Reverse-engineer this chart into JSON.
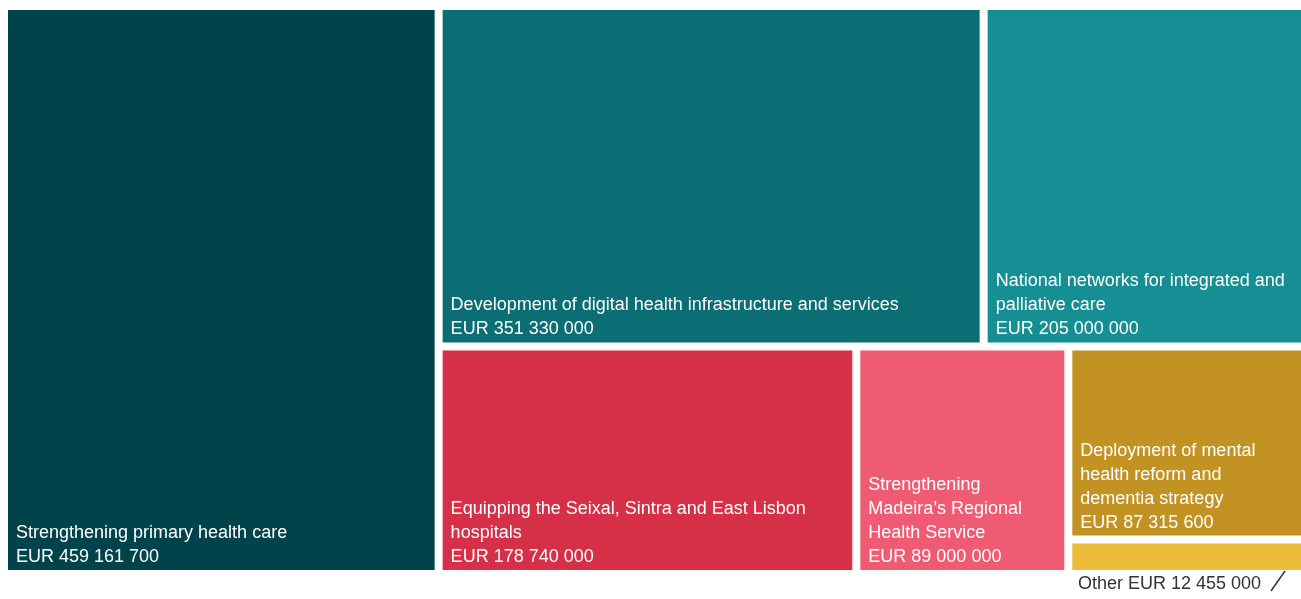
{
  "chart_data": {
    "type": "other",
    "categories": [
      "Strengthening primary health care",
      "Development of digital health infrastructure and services",
      "National networks for integrated and palliative care",
      "Equipping the Seixal, Sintra and East Lisbon hospitals",
      "Strengthening Madeira’s Regional Health Service",
      "Deployment of mental health reform and dementia strategy",
      "Other"
    ],
    "values": [
      459161700,
      351330000,
      205000000,
      178740000,
      89000000,
      87315600,
      12455000
    ],
    "value_labels": [
      "EUR 459 161 700",
      "EUR 351 330 000",
      "EUR 205 000 000",
      "EUR 178 740 000",
      "EUR 89 000 000",
      "EUR 87 315 600",
      "EUR 12 455 000"
    ],
    "colors": [
      "#00434a",
      "#0a6e74",
      "#158f93",
      "#d63048",
      "#ef5b73",
      "#c29322",
      "#ebbd3a"
    ]
  }
}
